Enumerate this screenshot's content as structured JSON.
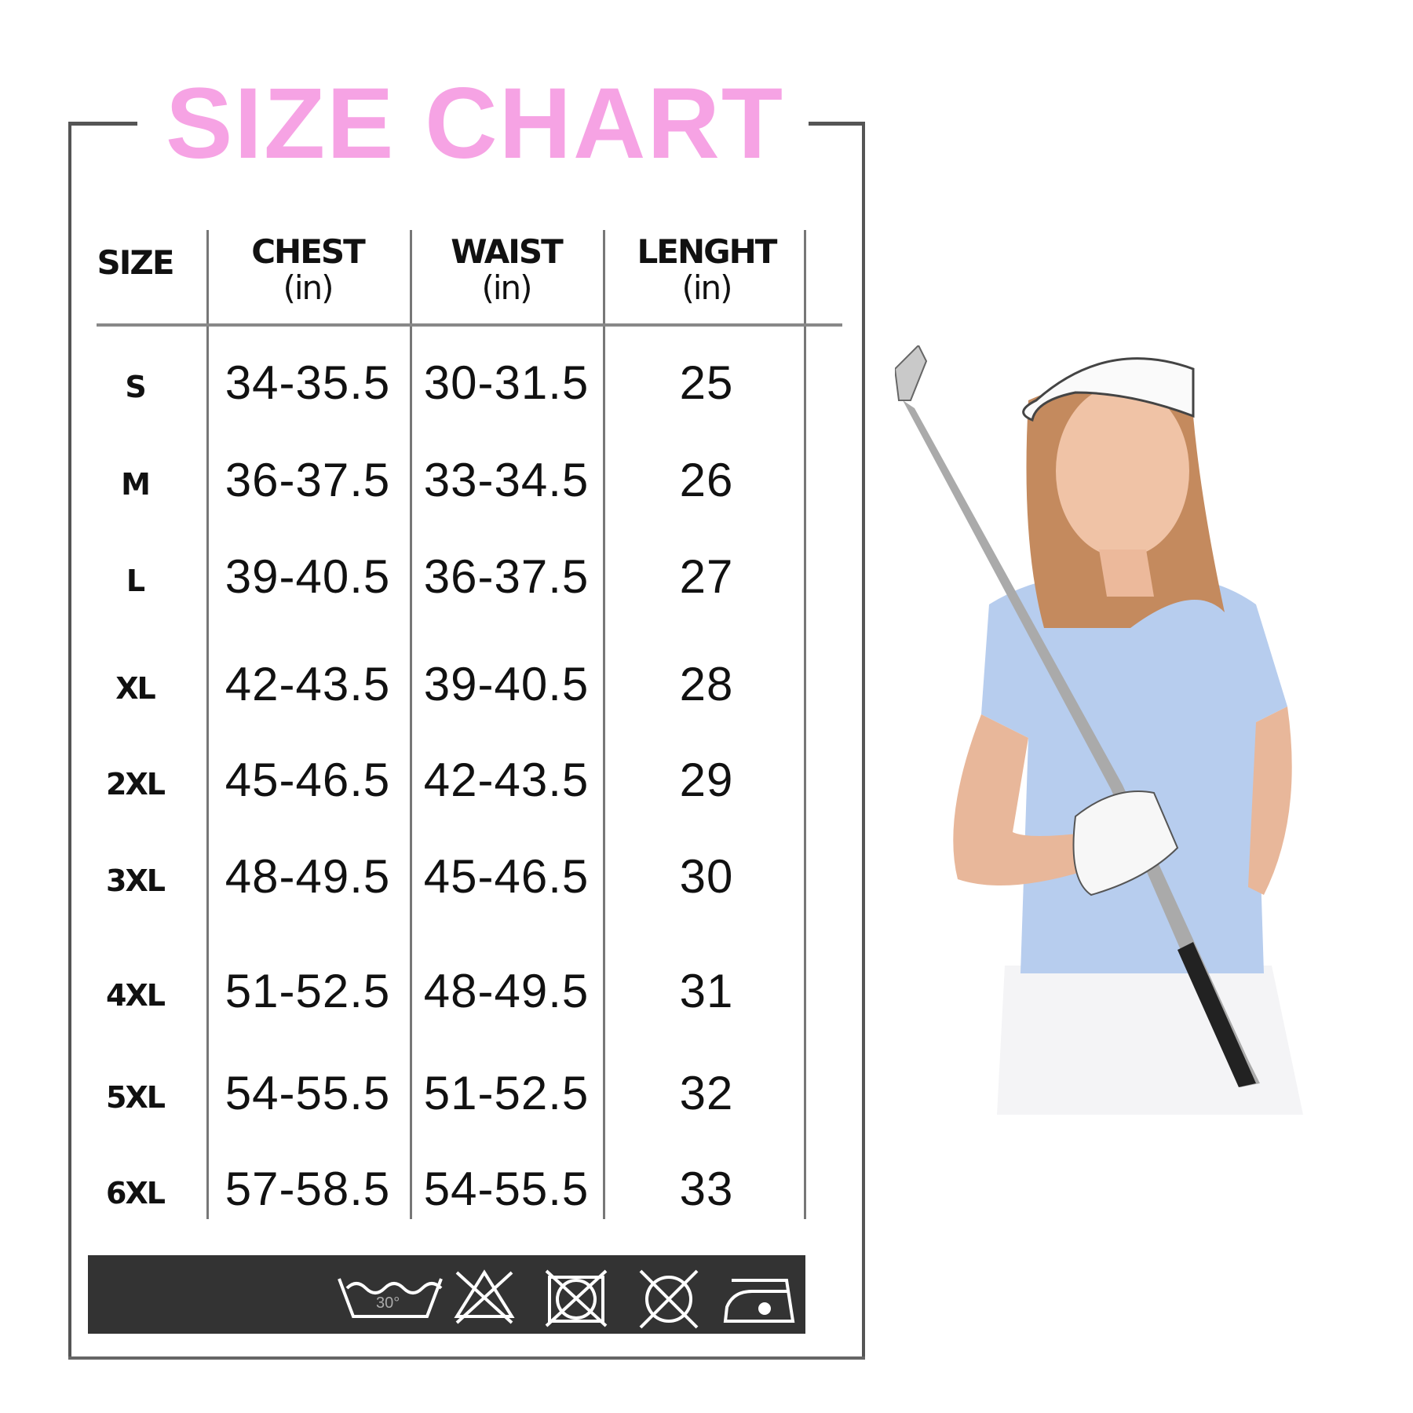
{
  "title": "SIZE CHART",
  "colors": {
    "title": "#f6a3e4",
    "frame": "#555555",
    "care_band": "#333333"
  },
  "headers": [
    {
      "label": "SIZE",
      "unit": ""
    },
    {
      "label": "CHEST",
      "unit": "(in)"
    },
    {
      "label": "WAIST",
      "unit": "(in)"
    },
    {
      "label": "LENGHT",
      "unit": "(in)"
    }
  ],
  "rows": [
    [
      "S",
      "34-35.5",
      "30-31.5",
      "25"
    ],
    [
      "M",
      "36-37.5",
      "33-34.5",
      "26"
    ],
    [
      "L",
      "39-40.5",
      "36-37.5",
      "27"
    ],
    [
      "XL",
      "42-43.5",
      "39-40.5",
      "28"
    ],
    [
      "2XL",
      "45-46.5",
      "42-43.5",
      "29"
    ],
    [
      "3XL",
      "48-49.5",
      "45-46.5",
      "30"
    ],
    [
      "4XL",
      "51-52.5",
      "48-49.5",
      "31"
    ],
    [
      "5XL",
      "54-55.5",
      "51-52.5",
      "32"
    ],
    [
      "6XL",
      "57-58.5",
      "54-55.5",
      "33"
    ]
  ],
  "care_icons": [
    {
      "icon": "wash-30-icon",
      "label": "30°"
    },
    {
      "icon": "do-not-bleach-icon"
    },
    {
      "icon": "do-not-tumble-dry-icon"
    },
    {
      "icon": "do-not-dry-clean-icon"
    },
    {
      "icon": "iron-low-icon"
    }
  ]
}
